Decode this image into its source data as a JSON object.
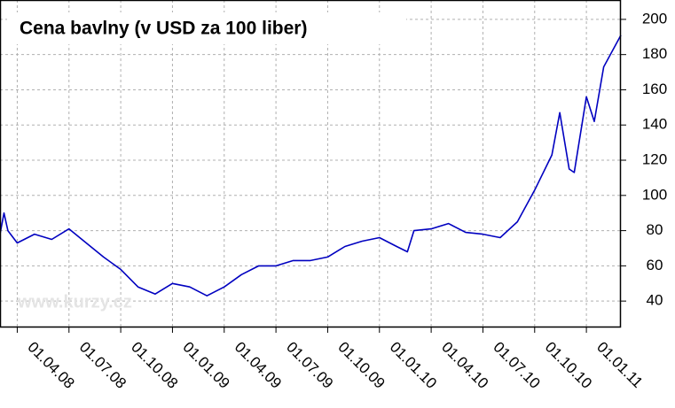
{
  "chart_data": {
    "type": "line",
    "title": "Cena bavlny (v USD za 100 liber)",
    "watermark": "www.kurzy.cz",
    "x": [
      "01.03.08",
      "08.03.08",
      "15.03.08",
      "01.04.08",
      "01.05.08",
      "01.06.08",
      "01.07.08",
      "01.08.08",
      "01.09.08",
      "01.10.08",
      "01.11.08",
      "01.12.08",
      "01.01.09",
      "01.02.09",
      "01.03.09",
      "01.04.09",
      "01.05.09",
      "01.06.09",
      "01.07.09",
      "01.08.09",
      "01.09.09",
      "01.10.09",
      "01.11.09",
      "01.12.09",
      "01.01.10",
      "01.02.10",
      "20.02.10",
      "01.03.10",
      "01.04.10",
      "01.05.10",
      "01.06.10",
      "01.07.10",
      "01.08.10",
      "01.09.10",
      "01.10.10",
      "01.11.10",
      "15.11.10",
      "01.12.10",
      "10.12.10",
      "01.01.11",
      "15.01.11",
      "01.02.11",
      "01.03.11"
    ],
    "series": [
      {
        "name": "Cena bavlny",
        "color": "#0000c0",
        "values": [
          78,
          90,
          80,
          73,
          78,
          75,
          81,
          73,
          65,
          58,
          48,
          44,
          50,
          48,
          43,
          48,
          55,
          60,
          60,
          63,
          63,
          65,
          71,
          74,
          76,
          71,
          68,
          80,
          81,
          84,
          79,
          78,
          76,
          85,
          103,
          123,
          147,
          115,
          113,
          156,
          142,
          173,
          191
        ]
      }
    ],
    "xlim": [
      "01.03.08",
      "01.03.11"
    ],
    "xticks": [
      "01.04.08",
      "01.07.08",
      "01.10.08",
      "01.01.09",
      "01.04.09",
      "01.07.09",
      "01.10.09",
      "01.01.10",
      "01.04.10",
      "01.07.10",
      "01.10.10",
      "01.01.11"
    ],
    "ylim": [
      25,
      211
    ],
    "yticks": [
      40,
      60,
      80,
      100,
      120,
      140,
      160,
      180,
      200
    ],
    "grid": true
  }
}
